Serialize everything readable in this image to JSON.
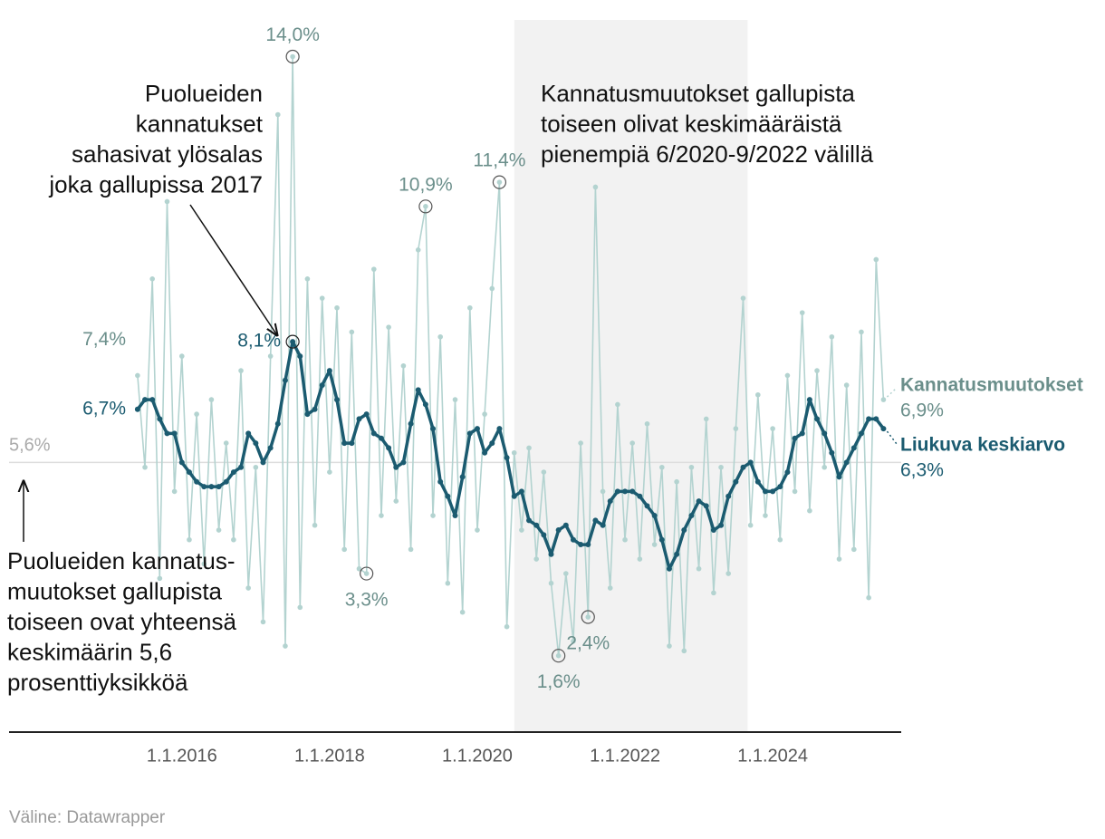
{
  "chart_data": {
    "type": "line",
    "x": [
      2015.4,
      2015.5,
      2015.6,
      2015.7,
      2015.8,
      2015.9,
      2016.0,
      2016.1,
      2016.2,
      2016.3,
      2016.4,
      2016.5,
      2016.6,
      2016.7,
      2016.8,
      2016.9,
      2017.0,
      2017.1,
      2017.2,
      2017.3,
      2017.4,
      2017.5,
      2017.6,
      2017.7,
      2017.8,
      2017.9,
      2018.0,
      2018.1,
      2018.2,
      2018.3,
      2018.4,
      2018.5,
      2018.6,
      2018.7,
      2018.8,
      2018.9,
      2019.0,
      2019.1,
      2019.2,
      2019.3,
      2019.4,
      2019.5,
      2019.6,
      2019.7,
      2019.8,
      2019.9,
      2020.0,
      2020.1,
      2020.2,
      2020.3,
      2020.4,
      2020.5,
      2020.6,
      2020.7,
      2020.8,
      2020.9,
      2021.0,
      2021.1,
      2021.2,
      2021.3,
      2021.4,
      2021.5,
      2021.6,
      2021.7,
      2021.8,
      2021.9,
      2022.0,
      2022.1,
      2022.2,
      2022.3,
      2022.4,
      2022.5,
      2022.6,
      2022.7,
      2022.8,
      2022.9,
      2023.0,
      2023.1,
      2023.2,
      2023.3,
      2023.4,
      2023.5,
      2023.6,
      2023.7,
      2023.8,
      2023.9,
      2024.0,
      2024.1,
      2024.2,
      2024.3,
      2024.4,
      2024.5,
      2024.6,
      2024.7,
      2024.8,
      2024.9,
      2025.0,
      2025.1,
      2025.2,
      2025.3,
      2025.4,
      2025.5
    ],
    "series": [
      {
        "name": "Kannatusmuutokset",
        "color": "#b3d3d0",
        "label_color": "#6b8f8b",
        "start_label": "7,4%",
        "end_label": "6,9%",
        "values": [
          7.4,
          5.5,
          9.4,
          3.2,
          11.0,
          5.0,
          7.8,
          4.0,
          6.6,
          3.5,
          6.9,
          4.2,
          6.0,
          4.0,
          7.5,
          3.0,
          5.5,
          2.3,
          7.8,
          12.8,
          1.8,
          14.0,
          2.6,
          9.4,
          4.3,
          9.0,
          5.4,
          8.8,
          3.8,
          8.3,
          3.4,
          3.3,
          9.6,
          4.5,
          8.4,
          4.8,
          7.6,
          3.8,
          10.0,
          10.9,
          4.5,
          8.2,
          3.1,
          6.9,
          2.5,
          8.8,
          4.2,
          6.6,
          9.2,
          11.4,
          2.2,
          5.8,
          4.2,
          5.9,
          3.6,
          5.4,
          3.1,
          1.6,
          3.3,
          1.9,
          6.0,
          2.4,
          11.3,
          5.0,
          3.0,
          6.8,
          4.0,
          6.0,
          3.6,
          6.4,
          3.9,
          5.5,
          1.8,
          5.2,
          1.7,
          5.5,
          3.4,
          6.5,
          2.9,
          5.5,
          3.3,
          6.3,
          9.0,
          4.3,
          7.0,
          4.5,
          6.3,
          4.0,
          7.4,
          5.0,
          8.7,
          4.6,
          7.5,
          5.5,
          8.2,
          3.6,
          7.2,
          3.8,
          8.3,
          2.8,
          9.8,
          6.9
        ]
      },
      {
        "name": "Liukuva keskiarvo",
        "color": "#1b5b70",
        "label_color": "#1b5b70",
        "start_label": "6,7%",
        "end_label": "6,3%",
        "values": [
          6.7,
          6.9,
          6.9,
          6.5,
          6.2,
          6.2,
          5.6,
          5.4,
          5.2,
          5.1,
          5.1,
          5.1,
          5.2,
          5.4,
          5.5,
          6.2,
          6.0,
          5.6,
          5.9,
          6.4,
          7.3,
          8.1,
          7.8,
          6.6,
          6.7,
          7.2,
          7.5,
          6.9,
          6.0,
          6.0,
          6.5,
          6.6,
          6.2,
          6.1,
          5.9,
          5.5,
          5.6,
          6.4,
          7.1,
          6.8,
          6.3,
          5.2,
          4.9,
          4.5,
          5.3,
          6.2,
          6.3,
          5.8,
          6.0,
          6.3,
          5.7,
          4.9,
          5.0,
          4.4,
          4.3,
          4.1,
          3.7,
          4.2,
          4.3,
          4.0,
          3.9,
          3.9,
          4.4,
          4.3,
          4.8,
          5.0,
          5.0,
          5.0,
          4.9,
          4.7,
          4.5,
          4.0,
          3.4,
          3.7,
          4.2,
          4.5,
          4.8,
          4.7,
          4.2,
          4.3,
          4.9,
          5.2,
          5.5,
          5.6,
          5.2,
          5.0,
          5.0,
          5.1,
          5.4,
          6.1,
          6.2,
          6.9,
          6.5,
          6.2,
          5.8,
          5.3,
          5.6,
          5.9,
          6.2,
          6.5,
          6.5,
          6.3
        ]
      }
    ],
    "point_labels": [
      {
        "series": 0,
        "index": 21,
        "label": "14,0%"
      },
      {
        "series": 0,
        "index": 49,
        "label": "11,4%"
      },
      {
        "series": 0,
        "index": 39,
        "label": "10,9%"
      },
      {
        "series": 0,
        "index": 31,
        "label": "3,3%"
      },
      {
        "series": 0,
        "index": 61,
        "label": "2,4%"
      },
      {
        "series": 0,
        "index": 57,
        "label": "1,6%"
      },
      {
        "series": 1,
        "index": 21,
        "label": "8,1%"
      }
    ],
    "reference_line": {
      "value": 5.6,
      "label": "5,6%"
    },
    "highlight_range": [
      2020.5,
      2023.66
    ],
    "xlim": [
      2013.66,
      2025.74
    ],
    "xticks": [
      {
        "value": 2016,
        "label": "1.1.2016"
      },
      {
        "value": 2018,
        "label": "1.1.2018"
      },
      {
        "value": 2020,
        "label": "1.1.2020"
      },
      {
        "value": 2022,
        "label": "1.1.2022"
      },
      {
        "value": 2024,
        "label": "1.1.2024"
      }
    ],
    "ylim": [
      0,
      14.76
    ],
    "grid": false,
    "annotations": [
      {
        "lines": [
          "Puolueiden",
          "kannatukset",
          "sahasivat ylösalas",
          "joka gallupissa 2017"
        ]
      },
      {
        "lines": [
          "Kannatusmuutokset gallupista",
          "toiseen olivat keskimääräistä",
          "pienempiä 6/2020-9/2022 välillä"
        ]
      },
      {
        "lines": [
          "Puolueiden kannatus-",
          "muutokset gallupista",
          "toiseen ovat yhteensä",
          "keskimäärin 5,6",
          "prosenttiyksikköä"
        ]
      }
    ],
    "source": "Väline: Datawrapper"
  }
}
